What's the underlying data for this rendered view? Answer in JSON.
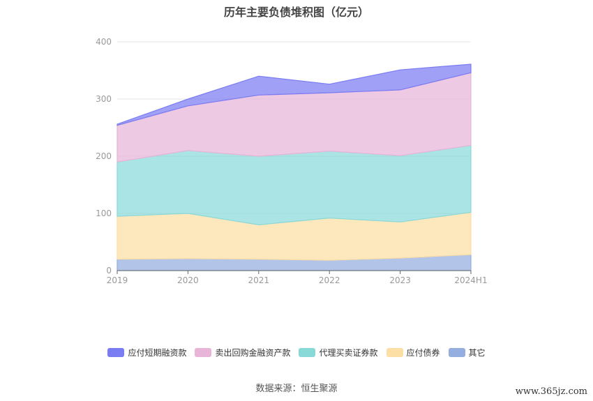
{
  "chart_data": {
    "type": "area",
    "stacked": true,
    "title": "历年主要负债堆积图（亿元）",
    "categories": [
      "2019",
      "2020",
      "2021",
      "2022",
      "2023",
      "2024H1"
    ],
    "ylim": [
      0,
      400
    ],
    "yticks": [
      "0",
      "100",
      "200",
      "300",
      "400"
    ],
    "grid": true,
    "legend_position": "bottom",
    "series": [
      {
        "name": "其它",
        "color": "#94aee0",
        "values": [
          20,
          21,
          20,
          18,
          22,
          28
        ]
      },
      {
        "name": "应付债券",
        "color": "#fcdfa5",
        "values": [
          75,
          79,
          60,
          74,
          63,
          74
        ]
      },
      {
        "name": "代理买卖证券款",
        "color": "#8ad9d9",
        "values": [
          95,
          110,
          120,
          117,
          116,
          117
        ]
      },
      {
        "name": "卖出回购金融资产款",
        "color": "#e8b4d8",
        "values": [
          64,
          78,
          107,
          102,
          115,
          127
        ]
      },
      {
        "name": "应付短期融资款",
        "color": "#7a7cf2",
        "values": [
          2,
          12,
          33,
          15,
          35,
          15
        ]
      }
    ],
    "legend_order": [
      "应付短期融资款",
      "卖出回购金融资产款",
      "代理买卖证券款",
      "应付债券",
      "其它"
    ]
  },
  "footer": {
    "source": "数据来源：恒生聚源",
    "watermark": "www.365jz.com"
  }
}
